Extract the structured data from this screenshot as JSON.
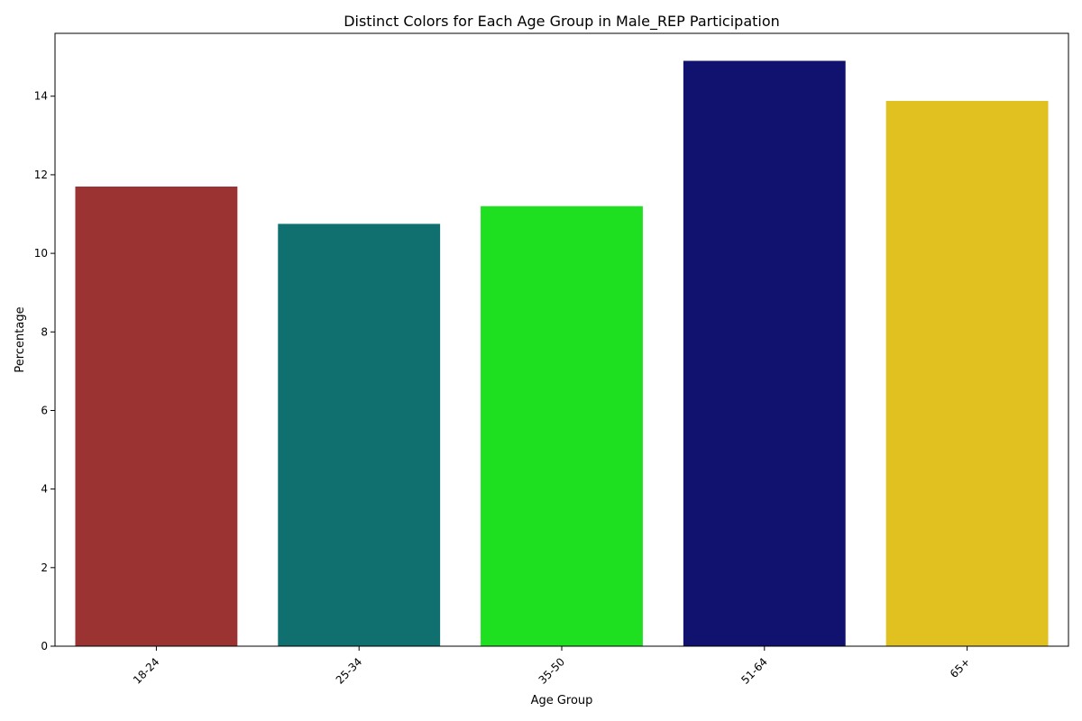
{
  "chart_data": {
    "type": "bar",
    "title": "Distinct Colors for Each Age Group in Male_REP Participation",
    "xlabel": "Age Group",
    "ylabel": "Percentage",
    "categories": [
      "18-24",
      "25-34",
      "35-50",
      "51-64",
      "65+"
    ],
    "values": [
      11.7,
      10.75,
      11.2,
      14.9,
      13.88
    ],
    "colors": [
      "#9b3333",
      "#107070",
      "#1fe020",
      "#111170",
      "#e0c120"
    ],
    "ylim": [
      0,
      15.6
    ],
    "yticks": [
      0,
      2,
      4,
      6,
      8,
      10,
      12,
      14
    ],
    "xtick_rotation": 45,
    "grid": false,
    "legend": "none"
  }
}
